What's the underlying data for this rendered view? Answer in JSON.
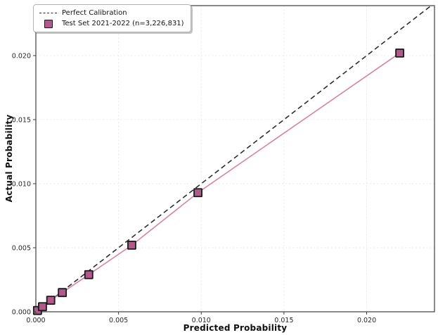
{
  "figure": {
    "background": "#ffffff"
  },
  "chart_data": {
    "type": "line",
    "title": "",
    "xlabel": "Predicted Probability",
    "ylabel": "Actual Probability",
    "xlim": [
      0,
      0.0241
    ],
    "ylim": [
      0,
      0.0239
    ],
    "xticks": [
      0,
      0.005,
      0.01,
      0.015,
      0.02
    ],
    "yticks": [
      0,
      0.005,
      0.01,
      0.015,
      0.02
    ],
    "tick_decimals": 3,
    "grid": true,
    "grid_color": "#ebebeb",
    "spine_color": "#3d3d3d",
    "tick_label_color": "#262626",
    "legend_position": "upper-left",
    "series": [
      {
        "name": "Perfect Calibration",
        "type": "line",
        "line_style": "dashed",
        "color": "#2d2d2d",
        "x": [
          0,
          0.0239
        ],
        "y": [
          0,
          0.0239
        ]
      },
      {
        "name": "Test Set 2021-2022 (n=3,226,831)",
        "type": "line+markers",
        "line_style": "solid",
        "color": "#d683a8",
        "marker": "square",
        "marker_color": "#b05a8c",
        "marker_edge_color": "#1a1a1a",
        "x": [
          0.0001,
          0.0004,
          0.0009,
          0.0016,
          0.0032,
          0.0058,
          0.0098,
          0.022
        ],
        "y": [
          0.0001,
          0.0004,
          0.0009,
          0.0015,
          0.0029,
          0.0052,
          0.0093,
          0.0202
        ]
      }
    ]
  }
}
